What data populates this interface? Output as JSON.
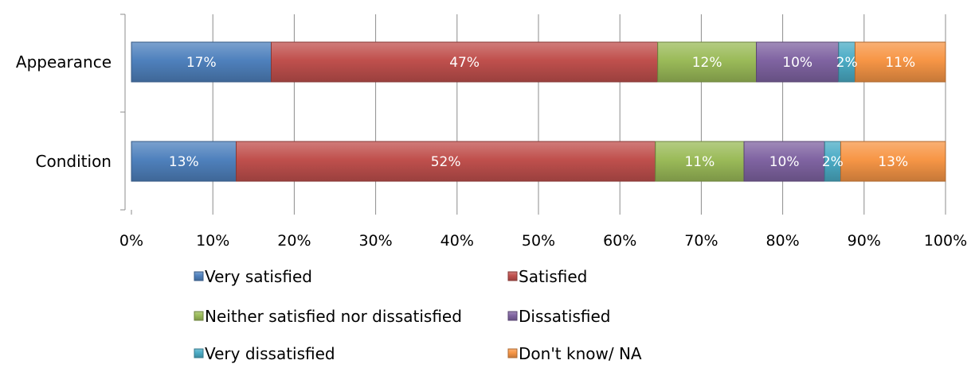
{
  "chart_data": {
    "type": "bar",
    "orientation": "horizontal",
    "stacked": true,
    "percent_stacked": true,
    "categories": [
      "Appearance",
      "Condition"
    ],
    "series": [
      {
        "name": "Very satisfied",
        "values": [
          17,
          13
        ],
        "labels": [
          "17%",
          "13%"
        ],
        "color": "#4f81bd"
      },
      {
        "name": "Satisfied",
        "values": [
          47,
          52
        ],
        "labels": [
          "47%",
          "52%"
        ],
        "color": "#c0504d"
      },
      {
        "name": "Neither satisfied nor dissatisfied",
        "values": [
          12,
          11
        ],
        "labels": [
          "12%",
          "11%"
        ],
        "color": "#9bbb59"
      },
      {
        "name": "Dissatisfied",
        "values": [
          10,
          10
        ],
        "labels": [
          "10%",
          "10%"
        ],
        "color": "#8064a2"
      },
      {
        "name": "Very dissatisfied",
        "values": [
          2,
          2
        ],
        "labels": [
          "2%",
          "2%"
        ],
        "color": "#4bacc6"
      },
      {
        "name": "Don't know/ NA",
        "values": [
          11,
          13
        ],
        "labels": [
          "11%",
          "13%"
        ],
        "color": "#f79646"
      }
    ],
    "xlim": [
      0,
      100
    ],
    "x_ticks": [
      "0%",
      "10%",
      "20%",
      "30%",
      "40%",
      "50%",
      "60%",
      "70%",
      "80%",
      "90%",
      "100%"
    ],
    "grid": true,
    "legend_position": "bottom",
    "title": "",
    "xlabel": "",
    "ylabel": ""
  }
}
